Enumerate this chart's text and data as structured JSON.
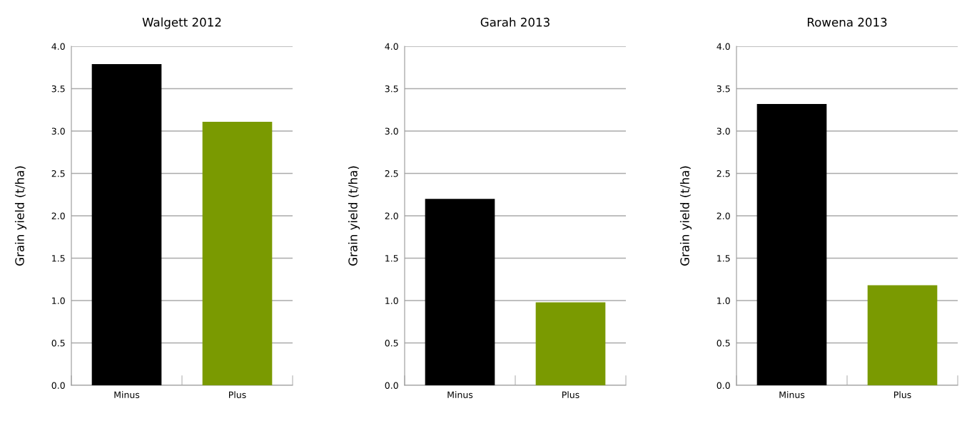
{
  "chart_data": [
    {
      "type": "bar",
      "title": "Walgett 2012",
      "ylabel": "Grain yield (t/ha)",
      "categories": [
        "Minus",
        "Plus"
      ],
      "values": [
        3.79,
        3.11
      ],
      "colors": [
        "#000000",
        "#7a9a01"
      ],
      "ylim": [
        0,
        4.0
      ],
      "yticks": [
        {
          "value": 0,
          "label": "0.0"
        },
        {
          "value": 0.5,
          "label": "0.5"
        },
        {
          "value": 1,
          "label": "1.0"
        },
        {
          "value": 1.5,
          "label": "1.5"
        },
        {
          "value": 2,
          "label": "2.0"
        },
        {
          "value": 2.5,
          "label": "2.5"
        },
        {
          "value": 3,
          "label": "3.0"
        },
        {
          "value": 3.5,
          "label": "3.5"
        },
        {
          "value": 4,
          "label": "4.0"
        }
      ],
      "grid": "y"
    },
    {
      "type": "bar",
      "title": "Garah 2013",
      "ylabel": "Grain yield (t/ha)",
      "categories": [
        "Minus",
        "Plus"
      ],
      "values": [
        2.2,
        0.98
      ],
      "colors": [
        "#000000",
        "#7a9a01"
      ],
      "ylim": [
        0,
        4.0
      ],
      "yticks": [
        {
          "value": 0,
          "label": "0.0"
        },
        {
          "value": 0.5,
          "label": "0.5"
        },
        {
          "value": 1,
          "label": "1.0"
        },
        {
          "value": 1.5,
          "label": "1.5"
        },
        {
          "value": 2,
          "label": "2.0"
        },
        {
          "value": 2.5,
          "label": "2.5"
        },
        {
          "value": 3,
          "label": "3.0"
        },
        {
          "value": 3.5,
          "label": "3.5"
        },
        {
          "value": 4,
          "label": "4.0"
        }
      ],
      "grid": "y"
    },
    {
      "type": "bar",
      "title": "Rowena 2013",
      "ylabel": "Grain yield (t/ha)",
      "categories": [
        "Minus",
        "Plus"
      ],
      "values": [
        3.32,
        1.18
      ],
      "colors": [
        "#000000",
        "#7a9a01"
      ],
      "ylim": [
        0,
        4.0
      ],
      "yticks": [
        {
          "value": 0,
          "label": "0.0"
        },
        {
          "value": 0.5,
          "label": "0.5"
        },
        {
          "value": 1,
          "label": "1.0"
        },
        {
          "value": 1.5,
          "label": "1.5"
        },
        {
          "value": 2,
          "label": "2.0"
        },
        {
          "value": 2.5,
          "label": "2.5"
        },
        {
          "value": 3,
          "label": "3.0"
        },
        {
          "value": 3.5,
          "label": "3.5"
        },
        {
          "value": 4,
          "label": "4.0"
        }
      ],
      "grid": "y"
    }
  ]
}
